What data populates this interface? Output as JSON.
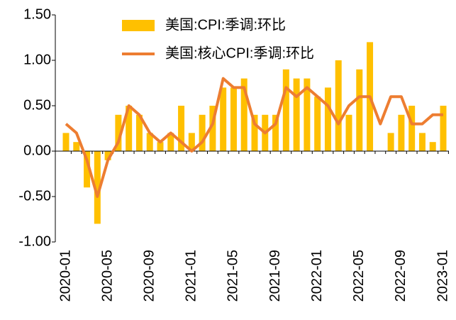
{
  "chart_data": {
    "type": "bar+line",
    "categories": [
      "2020-01",
      null,
      null,
      null,
      "2020-05",
      null,
      null,
      null,
      "2020-09",
      null,
      null,
      null,
      "2021-01",
      null,
      null,
      null,
      "2021-05",
      null,
      null,
      null,
      "2021-09",
      null,
      null,
      null,
      "2022-01",
      null,
      null,
      null,
      "2022-05",
      null,
      null,
      null,
      "2022-09",
      null,
      null,
      null,
      "2023-01"
    ],
    "series": [
      {
        "name": "美国:CPI:季调:环比",
        "type": "bar",
        "color": "#FFC000",
        "values": [
          0.2,
          0.1,
          -0.4,
          -0.8,
          -0.1,
          0.4,
          0.5,
          0.4,
          0.2,
          0.1,
          0.2,
          0.5,
          0.2,
          0.4,
          0.5,
          0.7,
          0.7,
          0.8,
          0.4,
          0.4,
          0.4,
          0.9,
          0.8,
          0.8,
          0.6,
          0.7,
          1.0,
          0.4,
          0.9,
          1.2,
          0.0,
          0.2,
          0.4,
          0.5,
          0.2,
          0.1,
          0.5
        ]
      },
      {
        "name": "美国:核心CPI:季调:环比",
        "type": "line",
        "color": "#ED7D31",
        "values": [
          0.3,
          0.2,
          -0.1,
          -0.5,
          -0.1,
          0.1,
          0.5,
          0.4,
          0.2,
          0.1,
          0.2,
          0.1,
          0.0,
          0.1,
          0.3,
          0.8,
          0.7,
          0.7,
          0.3,
          0.2,
          0.3,
          0.7,
          0.6,
          0.7,
          0.6,
          0.5,
          0.3,
          0.5,
          0.6,
          0.6,
          0.3,
          0.6,
          0.6,
          0.3,
          0.3,
          0.4,
          0.4
        ]
      }
    ],
    "ylim": [
      -1.0,
      1.5
    ],
    "yticks": [
      {
        "value": 1.5,
        "label": "1.50"
      },
      {
        "value": 1.0,
        "label": "1.00"
      },
      {
        "value": 0.5,
        "label": "0.50"
      },
      {
        "value": 0.0,
        "label": "0.00"
      },
      {
        "value": -0.5,
        "label": "-0.50"
      },
      {
        "value": -1.0,
        "label": "-1.00"
      }
    ],
    "grid": false
  }
}
